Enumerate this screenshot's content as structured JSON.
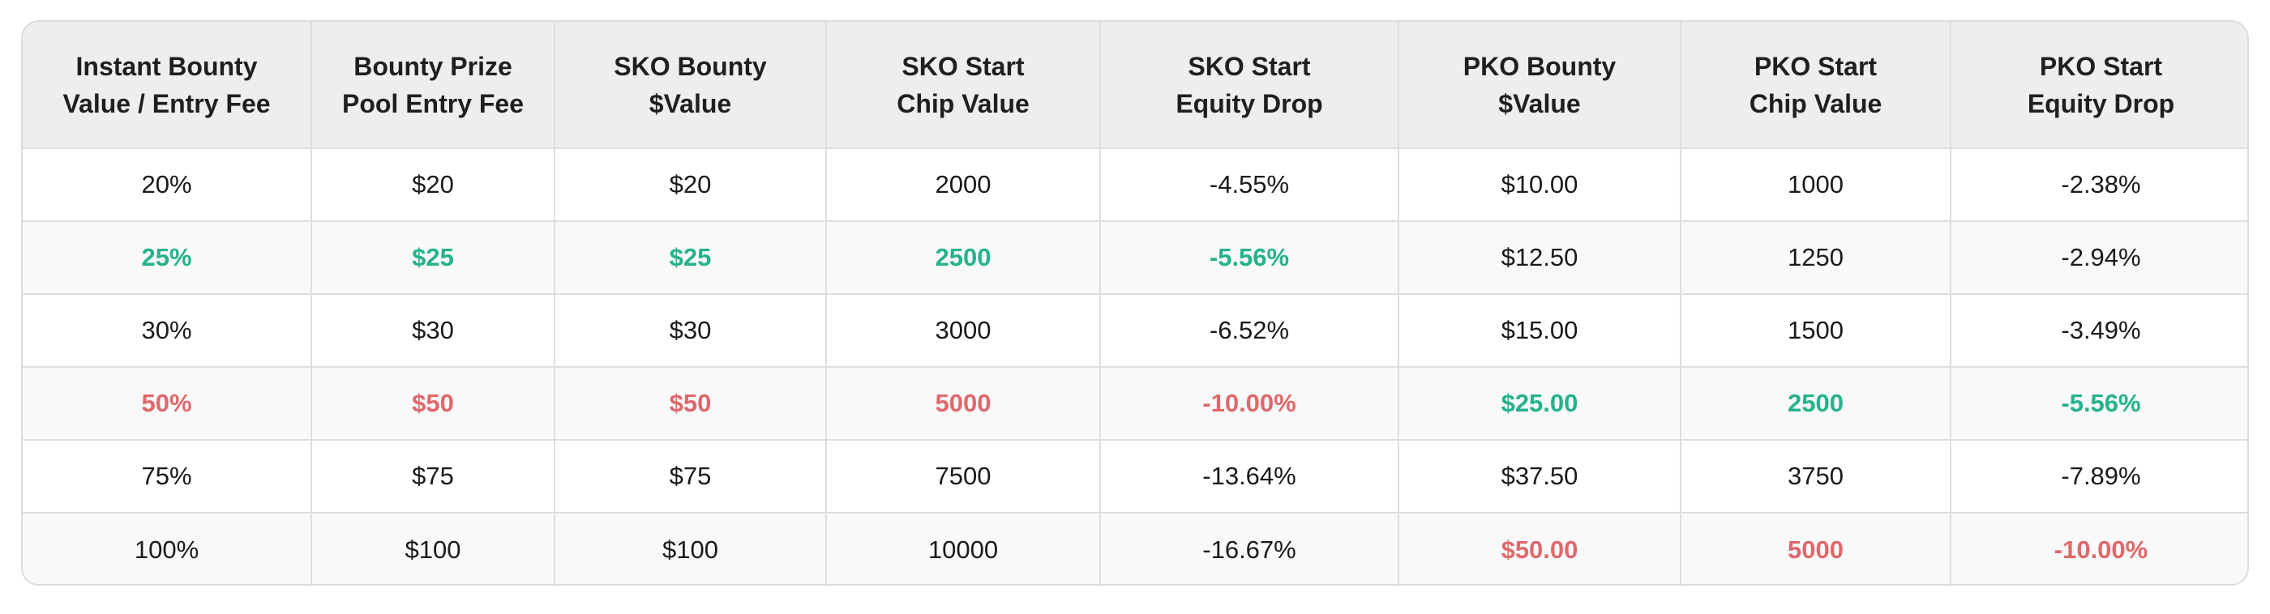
{
  "colors": {
    "highlight_green": "#25b28c",
    "highlight_red": "#e0686b",
    "header_background": "#efeeef",
    "border": "#dcdcdc"
  },
  "table": {
    "headers": [
      [
        "Instant Bounty",
        "Value / Entry Fee"
      ],
      [
        "Bounty Prize",
        "Pool Entry Fee"
      ],
      [
        "SKO Bounty",
        "$Value"
      ],
      [
        "SKO Start",
        "Chip Value"
      ],
      [
        "SKO Start",
        "Equity Drop"
      ],
      [
        "PKO Bounty",
        "$Value"
      ],
      [
        "PKO Start",
        "Chip Value"
      ],
      [
        "PKO Start",
        "Equity Drop"
      ]
    ],
    "rows": [
      {
        "cells": [
          "20%",
          "$20",
          "$20",
          "2000",
          "-4.55%",
          "$10.00",
          "1000",
          "-2.38%"
        ],
        "highlight": [
          "",
          "",
          "",
          "",
          "",
          "",
          "",
          ""
        ]
      },
      {
        "cells": [
          "25%",
          "$25",
          "$25",
          "2500",
          "-5.56%",
          "$12.50",
          "1250",
          "-2.94%"
        ],
        "highlight": [
          "green",
          "green",
          "green",
          "green",
          "green",
          "",
          "",
          ""
        ]
      },
      {
        "cells": [
          "30%",
          "$30",
          "$30",
          "3000",
          "-6.52%",
          "$15.00",
          "1500",
          "-3.49%"
        ],
        "highlight": [
          "",
          "",
          "",
          "",
          "",
          "",
          "",
          ""
        ]
      },
      {
        "cells": [
          "50%",
          "$50",
          "$50",
          "5000",
          "-10.00%",
          "$25.00",
          "2500",
          "-5.56%"
        ],
        "highlight": [
          "red",
          "red",
          "red",
          "red",
          "red",
          "green",
          "green",
          "green"
        ]
      },
      {
        "cells": [
          "75%",
          "$75",
          "$75",
          "7500",
          "-13.64%",
          "$37.50",
          "3750",
          "-7.89%"
        ],
        "highlight": [
          "",
          "",
          "",
          "",
          "",
          "",
          "",
          ""
        ]
      },
      {
        "cells": [
          "100%",
          "$100",
          "$100",
          "10000",
          "-16.67%",
          "$50.00",
          "5000",
          "-10.00%"
        ],
        "highlight": [
          "",
          "",
          "",
          "",
          "",
          "red",
          "red",
          "red"
        ]
      }
    ]
  }
}
